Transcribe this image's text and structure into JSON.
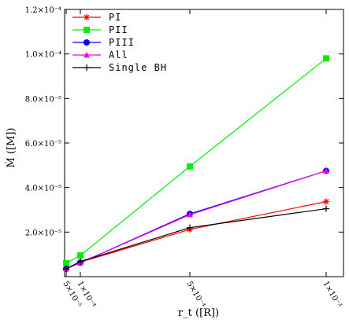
{
  "chart_data": {
    "type": "line",
    "title": "",
    "xlabel": "r_t ([R])",
    "ylabel": "Ṁ ([M])",
    "x": [
      5e-05,
      0.0001,
      0.0005,
      0.001
    ],
    "x_tick_labels": [
      "5×10⁻⁵",
      "1×10⁻⁴",
      "5×10⁻⁴",
      "1×10⁻³"
    ],
    "y_tick_labels": [
      "2.0×10⁻⁵",
      "4.0×10⁻⁵",
      "6.0×10⁻⁵",
      "8.0×10⁻⁵",
      "1.0×10⁻⁴",
      "1.2×10⁻⁴"
    ],
    "y_ticks": [
      2e-05,
      4e-05,
      6e-05,
      8e-05,
      0.0001,
      0.00012
    ],
    "ylim": [
      0.0,
      0.00012
    ],
    "grid": false,
    "legend_position": "top-left",
    "series": [
      {
        "name": "PI",
        "color": "#ff0000",
        "marker": "star",
        "values": [
          3.5e-06,
          6.5e-06,
          2.12e-05,
          3.37e-05
        ]
      },
      {
        "name": "PII",
        "color": "#00ee00",
        "marker": "square",
        "values": [
          6e-06,
          9.5e-06,
          4.95e-05,
          9.8e-05
        ]
      },
      {
        "name": "PIII",
        "color": "#0000ff",
        "marker": "circle",
        "values": [
          3.5e-06,
          6.2e-06,
          2.82e-05,
          4.75e-05
        ]
      },
      {
        "name": "All",
        "color": "#ee00ee",
        "marker": "triangle",
        "values": [
          3.5e-06,
          6.2e-06,
          2.78e-05,
          4.75e-05
        ]
      },
      {
        "name": "Single BH",
        "color": "#000000",
        "marker": "plus",
        "values": [
          3.5e-06,
          6.8e-06,
          2.2e-05,
          3.05e-05
        ]
      }
    ]
  }
}
